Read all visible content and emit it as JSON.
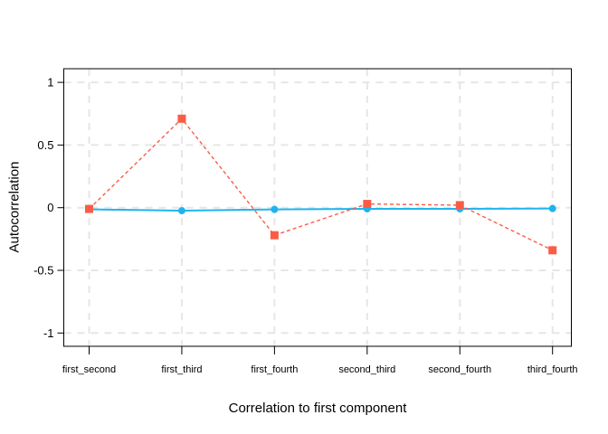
{
  "figure": {
    "background": "#ffffff",
    "text_color": "#000000"
  },
  "chart_data": {
    "type": "line",
    "title": "",
    "xlabel": "Correlation to first component",
    "ylabel": "Autocorrelation",
    "categories": [
      "first_second",
      "first_third",
      "first_fourth",
      "second_third",
      "second_fourth",
      "third_fourth"
    ],
    "series": [
      {
        "name": "cyan-solid-circles",
        "color": "#1FB4EF",
        "line_style": "solid",
        "marker": "circle",
        "values": [
          -0.013,
          -0.024,
          -0.014,
          -0.009,
          -0.009,
          -0.007
        ]
      },
      {
        "name": "red-dashed-squares",
        "color": "#FA5C46",
        "line_style": "dashed",
        "marker": "square",
        "values": [
          -0.01,
          0.71,
          -0.22,
          0.03,
          0.02,
          -0.34
        ]
      }
    ],
    "ylim": [
      -1.1,
      1.1
    ],
    "yticks": [
      -1,
      -0.5,
      0,
      0.5,
      1
    ],
    "ytick_labels": [
      "-1",
      "-0.5",
      "0",
      "0.5",
      "1"
    ],
    "grid": "dashed",
    "grid_color": "#E6E6E6",
    "border_color": "#000000",
    "legend": "none"
  }
}
